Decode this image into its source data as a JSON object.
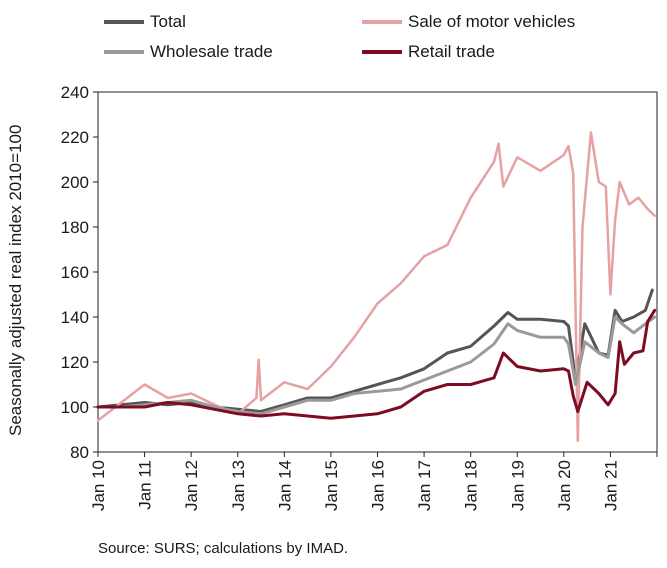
{
  "chart_data": {
    "type": "line",
    "ylabel": "Seasonally adjusted real index 2010=100",
    "ylim": [
      80,
      240
    ],
    "yticks": [
      80,
      100,
      120,
      140,
      160,
      180,
      200,
      220,
      240
    ],
    "xticks": [
      "Jan 10",
      "Jan 11",
      "Jan 12",
      "Jan 13",
      "Jan 14",
      "Jan 15",
      "Jan 16",
      "Jan 17",
      "Jan 18",
      "Jan 19",
      "Jan 20",
      "Jan 21"
    ],
    "x_range_months": "Jan 2010 – Dec 2021",
    "grid": false,
    "legend_position": "top",
    "series": [
      {
        "name": "Total",
        "color": "#555555",
        "width": 3,
        "points": [
          [
            2010.0,
            100
          ],
          [
            2010.5,
            101
          ],
          [
            2011.0,
            102
          ],
          [
            2011.5,
            101
          ],
          [
            2012.0,
            102
          ],
          [
            2012.5,
            100
          ],
          [
            2013.0,
            99
          ],
          [
            2013.5,
            98
          ],
          [
            2014.0,
            101
          ],
          [
            2014.5,
            104
          ],
          [
            2015.0,
            104
          ],
          [
            2015.5,
            107
          ],
          [
            2016.0,
            110
          ],
          [
            2016.5,
            113
          ],
          [
            2017.0,
            117
          ],
          [
            2017.5,
            124
          ],
          [
            2018.0,
            127
          ],
          [
            2018.5,
            136
          ],
          [
            2018.8,
            142
          ],
          [
            2019.0,
            139
          ],
          [
            2019.5,
            139
          ],
          [
            2020.0,
            138
          ],
          [
            2020.1,
            136
          ],
          [
            2020.25,
            112
          ],
          [
            2020.45,
            137
          ],
          [
            2020.75,
            124
          ],
          [
            2020.95,
            123
          ],
          [
            2021.1,
            143
          ],
          [
            2021.25,
            138
          ],
          [
            2021.5,
            140
          ],
          [
            2021.75,
            143
          ],
          [
            2021.9,
            152
          ]
        ]
      },
      {
        "name": "Sale of motor vehicles",
        "color": "#e6a2a2",
        "width": 2.5,
        "points": [
          [
            2010.0,
            94
          ],
          [
            2010.5,
            102
          ],
          [
            2011.0,
            110
          ],
          [
            2011.5,
            104
          ],
          [
            2012.0,
            106
          ],
          [
            2012.5,
            101
          ],
          [
            2013.0,
            97
          ],
          [
            2013.4,
            104
          ],
          [
            2013.45,
            121
          ],
          [
            2013.5,
            103
          ],
          [
            2014.0,
            111
          ],
          [
            2014.5,
            108
          ],
          [
            2015.0,
            118
          ],
          [
            2015.5,
            131
          ],
          [
            2016.0,
            146
          ],
          [
            2016.5,
            155
          ],
          [
            2017.0,
            167
          ],
          [
            2017.5,
            172
          ],
          [
            2018.0,
            193
          ],
          [
            2018.5,
            209
          ],
          [
            2018.6,
            217
          ],
          [
            2018.7,
            198
          ],
          [
            2019.0,
            211
          ],
          [
            2019.5,
            205
          ],
          [
            2020.0,
            212
          ],
          [
            2020.1,
            216
          ],
          [
            2020.2,
            204
          ],
          [
            2020.3,
            85
          ],
          [
            2020.4,
            180
          ],
          [
            2020.58,
            222
          ],
          [
            2020.75,
            200
          ],
          [
            2020.9,
            198
          ],
          [
            2021.0,
            150
          ],
          [
            2021.1,
            183
          ],
          [
            2021.2,
            200
          ],
          [
            2021.4,
            190
          ],
          [
            2021.6,
            193
          ],
          [
            2021.8,
            188
          ],
          [
            2021.95,
            185
          ]
        ]
      },
      {
        "name": "Wholesale trade",
        "color": "#9a9a9a",
        "width": 3,
        "points": [
          [
            2010.0,
            100
          ],
          [
            2010.5,
            100
          ],
          [
            2011.0,
            101
          ],
          [
            2011.5,
            102
          ],
          [
            2012.0,
            103
          ],
          [
            2012.5,
            100
          ],
          [
            2013.0,
            98
          ],
          [
            2013.5,
            97
          ],
          [
            2014.0,
            100
          ],
          [
            2014.5,
            103
          ],
          [
            2015.0,
            103
          ],
          [
            2015.5,
            106
          ],
          [
            2016.0,
            107
          ],
          [
            2016.5,
            108
          ],
          [
            2017.0,
            112
          ],
          [
            2017.5,
            116
          ],
          [
            2018.0,
            120
          ],
          [
            2018.5,
            128
          ],
          [
            2018.8,
            137
          ],
          [
            2019.0,
            134
          ],
          [
            2019.5,
            131
          ],
          [
            2020.0,
            131
          ],
          [
            2020.1,
            128
          ],
          [
            2020.25,
            110
          ],
          [
            2020.45,
            129
          ],
          [
            2020.75,
            124
          ],
          [
            2020.95,
            122
          ],
          [
            2021.1,
            140
          ],
          [
            2021.25,
            137
          ],
          [
            2021.5,
            133
          ],
          [
            2021.75,
            137
          ],
          [
            2021.95,
            140
          ]
        ]
      },
      {
        "name": "Retail trade",
        "color": "#7d0c22",
        "width": 3,
        "points": [
          [
            2010.0,
            100
          ],
          [
            2010.5,
            100
          ],
          [
            2011.0,
            100
          ],
          [
            2011.5,
            102
          ],
          [
            2012.0,
            101
          ],
          [
            2012.5,
            99
          ],
          [
            2013.0,
            97
          ],
          [
            2013.5,
            96
          ],
          [
            2014.0,
            97
          ],
          [
            2014.5,
            96
          ],
          [
            2015.0,
            95
          ],
          [
            2015.5,
            96
          ],
          [
            2016.0,
            97
          ],
          [
            2016.5,
            100
          ],
          [
            2017.0,
            107
          ],
          [
            2017.5,
            110
          ],
          [
            2018.0,
            110
          ],
          [
            2018.5,
            113
          ],
          [
            2018.7,
            124
          ],
          [
            2019.0,
            118
          ],
          [
            2019.5,
            116
          ],
          [
            2020.0,
            117
          ],
          [
            2020.1,
            116
          ],
          [
            2020.2,
            105
          ],
          [
            2020.3,
            98
          ],
          [
            2020.5,
            111
          ],
          [
            2020.75,
            106
          ],
          [
            2020.95,
            101
          ],
          [
            2021.1,
            106
          ],
          [
            2021.2,
            129
          ],
          [
            2021.3,
            119
          ],
          [
            2021.5,
            124
          ],
          [
            2021.7,
            125
          ],
          [
            2021.8,
            138
          ],
          [
            2021.95,
            143
          ]
        ]
      }
    ]
  },
  "legend": [
    {
      "label": "Total",
      "color": "#555555"
    },
    {
      "label": "Sale of motor vehicles",
      "color": "#e6a2a2"
    },
    {
      "label": "Wholesale trade",
      "color": "#9a9a9a"
    },
    {
      "label": "Retail trade",
      "color": "#7d0c22"
    }
  ],
  "source": "Source: SURS; calculations by IMAD."
}
